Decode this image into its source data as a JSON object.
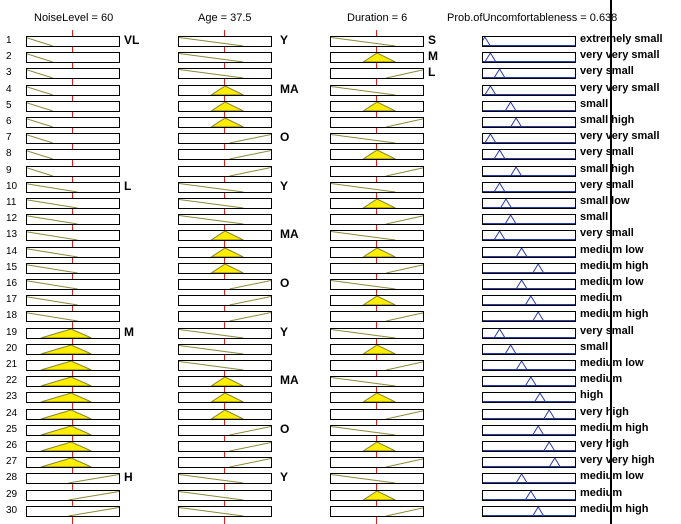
{
  "colors": {
    "mf_line": "#8a8a3a",
    "mf_fill": "#ffee00",
    "out_line": "#2a3aa8",
    "out_fill": "#2a3aa8",
    "index_line": "#e02020"
  },
  "headers": {
    "noise": "NoiseLevel = 60",
    "age": "Age = 37.5",
    "duration": "Duration = 6",
    "output": "Prob.ofUncomfortableness = 0.638"
  },
  "inputs": {
    "noise": 60,
    "age": 37.5,
    "duration": 6
  },
  "rules": [
    {
      "num": "1",
      "noise": "VL",
      "age": "Y",
      "dur": "S",
      "out": "extremely small"
    },
    {
      "num": "2",
      "noise": "VL",
      "age": "Y",
      "dur": "M",
      "out": "very very small"
    },
    {
      "num": "3",
      "noise": "VL",
      "age": "Y",
      "dur": "L",
      "out": "very small"
    },
    {
      "num": "4",
      "noise": "VL",
      "age": "MA",
      "dur": "S",
      "out": "very very small"
    },
    {
      "num": "5",
      "noise": "VL",
      "age": "MA",
      "dur": "M",
      "out": "small"
    },
    {
      "num": "6",
      "noise": "VL",
      "age": "MA",
      "dur": "L",
      "out": "small high"
    },
    {
      "num": "7",
      "noise": "VL",
      "age": "O",
      "dur": "S",
      "out": "very very small"
    },
    {
      "num": "8",
      "noise": "VL",
      "age": "O",
      "dur": "M",
      "out": "very small"
    },
    {
      "num": "9",
      "noise": "VL",
      "age": "O",
      "dur": "L",
      "out": "small high"
    },
    {
      "num": "10",
      "noise": "L",
      "age": "Y",
      "dur": "S",
      "out": "very small"
    },
    {
      "num": "11",
      "noise": "L",
      "age": "Y",
      "dur": "M",
      "out": "small low"
    },
    {
      "num": "12",
      "noise": "L",
      "age": "Y",
      "dur": "L",
      "out": "small"
    },
    {
      "num": "13",
      "noise": "L",
      "age": "MA",
      "dur": "S",
      "out": "very small"
    },
    {
      "num": "14",
      "noise": "L",
      "age": "MA",
      "dur": "M",
      "out": "medium low"
    },
    {
      "num": "15",
      "noise": "L",
      "age": "MA",
      "dur": "L",
      "out": "medium high"
    },
    {
      "num": "16",
      "noise": "L",
      "age": "O",
      "dur": "S",
      "out": "medium low"
    },
    {
      "num": "17",
      "noise": "L",
      "age": "O",
      "dur": "M",
      "out": "medium"
    },
    {
      "num": "18",
      "noise": "L",
      "age": "O",
      "dur": "L",
      "out": "medium high"
    },
    {
      "num": "19",
      "noise": "M",
      "age": "Y",
      "dur": "S",
      "out": "very small"
    },
    {
      "num": "20",
      "noise": "M",
      "age": "Y",
      "dur": "M",
      "out": "small"
    },
    {
      "num": "21",
      "noise": "M",
      "age": "Y",
      "dur": "L",
      "out": "medium low"
    },
    {
      "num": "22",
      "noise": "M",
      "age": "MA",
      "dur": "S",
      "out": "medium"
    },
    {
      "num": "23",
      "noise": "M",
      "age": "MA",
      "dur": "M",
      "out": "high"
    },
    {
      "num": "24",
      "noise": "M",
      "age": "MA",
      "dur": "L",
      "out": "very high"
    },
    {
      "num": "25",
      "noise": "M",
      "age": "O",
      "dur": "S",
      "out": "medium high"
    },
    {
      "num": "26",
      "noise": "M",
      "age": "O",
      "dur": "M",
      "out": "very high"
    },
    {
      "num": "27",
      "noise": "M",
      "age": "O",
      "dur": "L",
      "out": "very very high"
    },
    {
      "num": "28",
      "noise": "H",
      "age": "Y",
      "dur": "S",
      "out": "medium low"
    },
    {
      "num": "29",
      "noise": "H",
      "age": "Y",
      "dur": "M",
      "out": "medium"
    },
    {
      "num": "30",
      "noise": "H",
      "age": "Y",
      "dur": "L",
      "out": "medium high"
    }
  ],
  "group_labels": {
    "noise": [
      {
        "row": 1,
        "text": "VL"
      },
      {
        "row": 10,
        "text": "L"
      },
      {
        "row": 19,
        "text": "M"
      },
      {
        "row": 28,
        "text": "H"
      }
    ],
    "age": [
      {
        "row": 1,
        "text": "Y"
      },
      {
        "row": 4,
        "text": "MA"
      },
      {
        "row": 7,
        "text": "O"
      },
      {
        "row": 10,
        "text": "Y"
      },
      {
        "row": 13,
        "text": "MA"
      },
      {
        "row": 16,
        "text": "O"
      },
      {
        "row": 19,
        "text": "Y"
      },
      {
        "row": 22,
        "text": "MA"
      },
      {
        "row": 25,
        "text": "O"
      },
      {
        "row": 28,
        "text": "Y"
      }
    ],
    "dur": [
      {
        "row": 1,
        "text": "S"
      },
      {
        "row": 2,
        "text": "M"
      },
      {
        "row": 3,
        "text": "L"
      }
    ]
  },
  "output_levels": {
    "extremely small": 0.02,
    "very very small": 0.08,
    "very small": 0.18,
    "small": 0.3,
    "small low": 0.25,
    "small high": 0.36,
    "medium low": 0.42,
    "medium": 0.52,
    "medium high": 0.6,
    "high": 0.62,
    "very high": 0.72,
    "very very high": 0.78
  }
}
